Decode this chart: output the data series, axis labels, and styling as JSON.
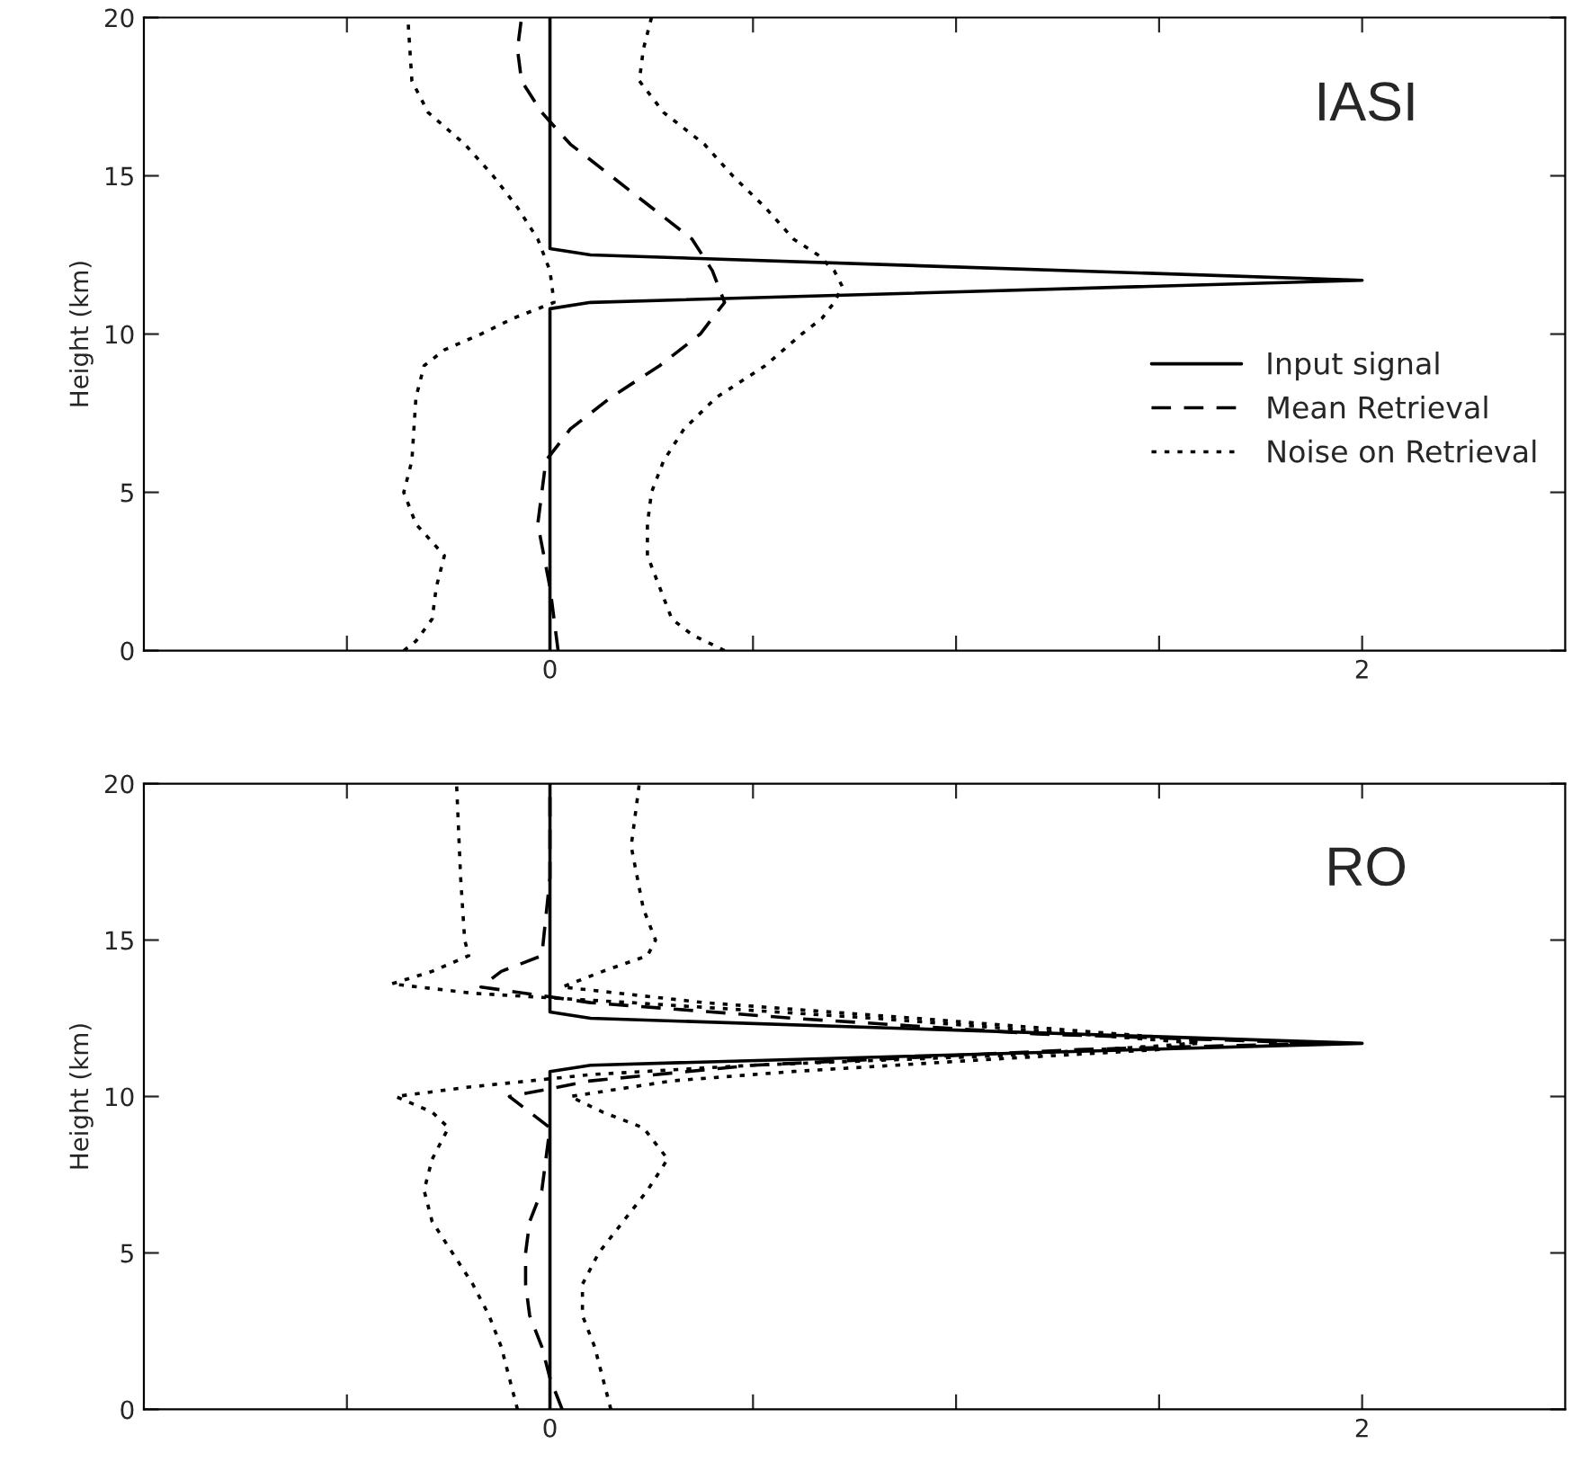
{
  "chart_data": [
    {
      "type": "line",
      "ylabel": "Height (km)",
      "annotations": [
        "IASI"
      ],
      "xlim": [
        -1,
        2.5
      ],
      "xticks": [
        {
          "value": -0.5,
          "label": null
        },
        0,
        {
          "value": 0.5,
          "label": null
        },
        {
          "value": 1,
          "label": null
        },
        {
          "value": 1.5,
          "label": null
        },
        2
      ],
      "ylim": [
        0,
        20
      ],
      "yticks": [
        0,
        5,
        10,
        15,
        20
      ],
      "grid": false,
      "legend": "center right",
      "marker": "none",
      "series": [
        {
          "name": "Input signal",
          "color": "#000000",
          "line_style": "solid",
          "x": [
            0,
            0,
            0.1,
            2.0,
            0.1,
            0,
            0
          ],
          "values": [
            0,
            10.8,
            11.0,
            11.7,
            12.5,
            12.7,
            20
          ]
        },
        {
          "name": "Mean Retrieval",
          "color": "#000000",
          "line_style": "dashed",
          "x": [
            0.02,
            0.0,
            -0.03,
            -0.01,
            0.05,
            0.15,
            0.27,
            0.37,
            0.43,
            0.4,
            0.35,
            0.25,
            0.15,
            0.05,
            -0.02,
            -0.07,
            -0.08,
            -0.07
          ],
          "values": [
            0,
            2,
            4,
            6,
            7,
            8,
            9,
            10,
            11,
            12,
            13,
            14,
            15,
            16,
            17,
            18,
            19,
            20
          ]
        },
        {
          "name": "Noise on Retrieval",
          "color": "#000000",
          "line_style": "dotted",
          "x": [
            -0.36,
            -0.33,
            -0.29,
            -0.28,
            -0.26,
            -0.33,
            -0.36,
            -0.34,
            -0.33,
            -0.31,
            -0.26,
            -0.17,
            -0.09,
            0.01,
            0,
            -0.03,
            -0.08,
            -0.14,
            -0.21,
            -0.3,
            -0.34,
            -0.35
          ],
          "values": [
            0,
            0.3,
            1,
            2,
            3,
            4,
            5,
            6,
            8,
            9,
            9.5,
            10,
            10.5,
            11,
            12,
            13,
            14,
            15,
            16,
            17,
            18,
            20
          ]
        },
        {
          "color": "#000000",
          "line_style": "dotted",
          "x": [
            0.43,
            0.35,
            0.3,
            0.27,
            0.24,
            0.24,
            0.25,
            0.28,
            0.33,
            0.41,
            0.53,
            0.62,
            0.67,
            0.7,
            0.72,
            0.7,
            0.66,
            0.6,
            0.53,
            0.45,
            0.38,
            0.28,
            0.22,
            0.23,
            0.25
          ],
          "values": [
            0,
            0.5,
            1,
            2,
            3,
            4,
            5,
            6,
            7,
            8,
            9,
            10,
            10.5,
            11,
            11.5,
            12,
            12.5,
            13,
            14,
            15,
            16,
            17,
            18,
            19,
            20
          ]
        }
      ]
    },
    {
      "type": "line",
      "ylabel": "Height (km)",
      "annotations": [
        "RO"
      ],
      "xlim": [
        -1,
        2.5
      ],
      "xticks": [
        {
          "value": -0.5,
          "label": null
        },
        0,
        {
          "value": 0.5,
          "label": null
        },
        {
          "value": 1,
          "label": null
        },
        {
          "value": 1.5,
          "label": null
        },
        2
      ],
      "ylim": [
        0,
        20
      ],
      "yticks": [
        0,
        5,
        10,
        15,
        20
      ],
      "grid": false,
      "legend": false,
      "marker": "none",
      "series": [
        {
          "color": "#000000",
          "line_style": "solid",
          "x": [
            0,
            0,
            0.1,
            2.0,
            0.1,
            0,
            0
          ],
          "values": [
            0,
            10.8,
            11.0,
            11.7,
            12.5,
            12.7,
            20
          ]
        },
        {
          "color": "#000000",
          "line_style": "dashed",
          "x": [
            0.03,
            0.0,
            -0.02,
            -0.05,
            -0.06,
            -0.06,
            -0.05,
            -0.02,
            0.0,
            -0.1,
            0.1,
            0.5,
            1.3,
            1.9,
            1.2,
            0.6,
            0.1,
            -0.17,
            -0.12,
            -0.02,
            0,
            0
          ],
          "values": [
            0,
            1,
            2,
            3,
            4,
            5,
            6,
            7,
            9,
            10,
            10.5,
            11,
            11.5,
            11.7,
            12,
            12.5,
            13,
            13.5,
            14,
            14.5,
            17,
            20
          ]
        },
        {
          "color": "#000000",
          "line_style": "dotted",
          "x": [
            -0.08,
            -0.1,
            -0.12,
            -0.15,
            -0.19,
            -0.24,
            -0.29,
            -0.31,
            -0.29,
            -0.25,
            -0.29,
            -0.38,
            -0.2,
            0.1,
            0.5,
            1.1,
            1.6,
            1.3,
            0.8,
            0.2,
            -0.19,
            -0.39,
            -0.29,
            -0.2,
            -0.21,
            -0.22,
            -0.23
          ],
          "values": [
            0,
            1,
            2,
            3,
            4,
            5,
            6,
            7,
            8,
            9,
            9.5,
            10,
            10.3,
            10.7,
            11,
            11.3,
            11.7,
            12,
            12.5,
            13,
            13.3,
            13.6,
            14,
            14.5,
            15,
            17,
            20
          ]
        },
        {
          "color": "#000000",
          "line_style": "dotted",
          "x": [
            0.15,
            0.13,
            0.11,
            0.08,
            0.08,
            0.12,
            0.18,
            0.24,
            0.29,
            0.23,
            0.13,
            0.05,
            0.3,
            0.6,
            1.1,
            1.5,
            1.6,
            1.4,
            0.9,
            0.38,
            0.03,
            0.13,
            0.24,
            0.26,
            0.23,
            0.2,
            0.22
          ],
          "values": [
            0,
            1,
            2,
            3,
            4,
            5,
            6,
            7,
            8,
            9,
            9.5,
            10,
            10.5,
            10.8,
            11.2,
            11.5,
            11.8,
            12,
            12.5,
            13,
            13.5,
            14,
            14.5,
            15,
            16,
            18,
            20
          ]
        }
      ]
    }
  ]
}
